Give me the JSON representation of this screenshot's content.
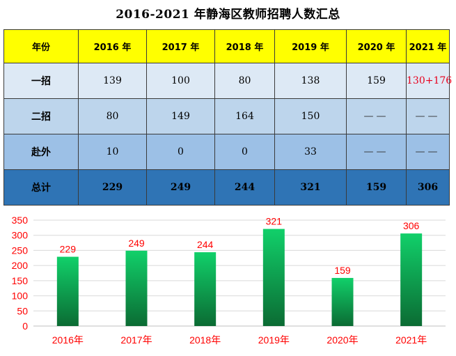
{
  "title": "2016-2021 年静海区教师招聘人数汇总",
  "table": {
    "headers": [
      "年份",
      "2016 年",
      "2017 年",
      "2018 年",
      "2019 年",
      "2020 年",
      "2021 年"
    ],
    "rows": [
      {
        "label": "一招",
        "values": [
          "139",
          "100",
          "80",
          "138",
          "159",
          "130+176"
        ]
      },
      {
        "label": "二招",
        "values": [
          "80",
          "149",
          "164",
          "150",
          "——",
          "——"
        ]
      },
      {
        "label": "赴外",
        "values": [
          "10",
          "0",
          "0",
          "33",
          "——",
          "——"
        ]
      },
      {
        "label": "总计",
        "values": [
          "229",
          "249",
          "244",
          "321",
          "159",
          "306"
        ]
      }
    ]
  },
  "chart_data": {
    "type": "bar",
    "categories": [
      "2016年",
      "2017年",
      "2018年",
      "2019年",
      "2020年",
      "2021年"
    ],
    "values": [
      229,
      249,
      244,
      321,
      159,
      306
    ],
    "ylim": [
      0,
      350
    ],
    "yticks": [
      0,
      50,
      100,
      150,
      200,
      250,
      300,
      350
    ],
    "grid": true,
    "colors": {
      "bar_top": "#11d06a",
      "bar_bottom": "#0b6b33",
      "label": "#ff0000",
      "axis_text": "#ff0000",
      "grid": "#d9d9d9"
    }
  }
}
